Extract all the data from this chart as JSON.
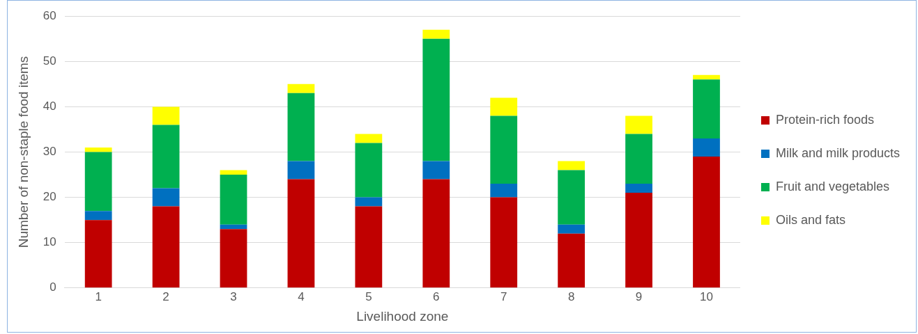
{
  "chart_data": {
    "type": "bar",
    "stacked": true,
    "xlabel": "Livelihood zone",
    "ylabel": "Number of non-staple food items",
    "categories": [
      "1",
      "2",
      "3",
      "4",
      "5",
      "6",
      "7",
      "8",
      "9",
      "10"
    ],
    "series": [
      {
        "name": "Protein-rich foods",
        "color": "#c00000",
        "values": [
          15,
          18,
          13,
          24,
          18,
          24,
          20,
          12,
          21,
          29
        ]
      },
      {
        "name": "Milk and milk products",
        "color": "#0070c0",
        "values": [
          2,
          4,
          1,
          4,
          2,
          4,
          3,
          2,
          2,
          4
        ]
      },
      {
        "name": "Fruit and vegetables",
        "color": "#00b050",
        "values": [
          13,
          14,
          11,
          15,
          12,
          27,
          15,
          12,
          11,
          13
        ]
      },
      {
        "name": "Oils and fats",
        "color": "#ffff00",
        "values": [
          1,
          4,
          1,
          2,
          2,
          2,
          4,
          2,
          4,
          1
        ]
      }
    ],
    "ylim": [
      0,
      60
    ],
    "yticks": [
      0,
      10,
      20,
      30,
      40,
      50,
      60
    ],
    "grid": "y",
    "legend": "right"
  }
}
